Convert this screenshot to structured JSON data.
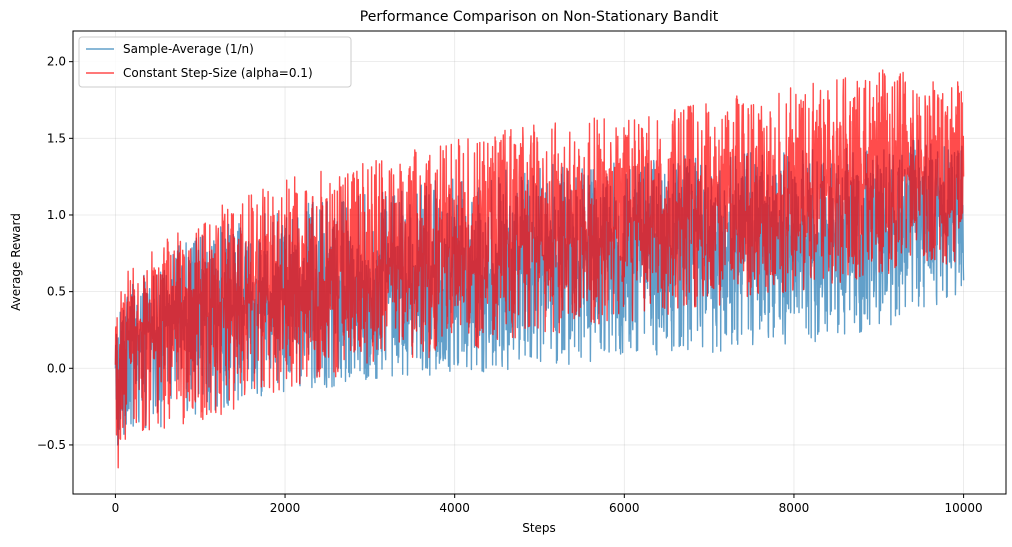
{
  "chart_data": {
    "type": "line",
    "title": "Performance Comparison on Non-Stationary Bandit",
    "xlabel": "Steps",
    "ylabel": "Average Reward",
    "xlim": [
      -500,
      10500
    ],
    "ylim": [
      -0.82,
      2.2
    ],
    "xticks": [
      0,
      2000,
      4000,
      6000,
      8000,
      10000
    ],
    "yticks": [
      -0.5,
      0.0,
      0.5,
      1.0,
      1.5,
      2.0
    ],
    "ytick_labels": [
      "−0.5",
      "0.0",
      "0.5",
      "1.0",
      "1.5",
      "2.0"
    ],
    "grid": true,
    "legend_position": "upper-left",
    "steps": 10000,
    "series": [
      {
        "name": "Sample-Average (1/n)",
        "color": "#1f77b4",
        "opacity": 0.7,
        "trend": {
          "x": [
            0,
            200,
            1000,
            2000,
            3000,
            4000,
            5000,
            6000,
            7000,
            8000,
            9000,
            10000
          ],
          "mean": [
            0.0,
            0.2,
            0.35,
            0.45,
            0.52,
            0.58,
            0.66,
            0.74,
            0.8,
            0.86,
            0.92,
            1.0
          ],
          "low": [
            -0.55,
            -0.45,
            -0.3,
            -0.15,
            -0.1,
            -0.05,
            0.0,
            0.05,
            0.1,
            0.15,
            0.2,
            0.5
          ],
          "high": [
            0.3,
            0.6,
            0.9,
            1.05,
            1.15,
            1.25,
            1.35,
            1.35,
            1.4,
            1.42,
            1.45,
            1.55
          ]
        }
      },
      {
        "name": "Constant Step-Size (alpha=0.1)",
        "color": "#ff0000",
        "opacity": 0.7,
        "trend": {
          "x": [
            0,
            200,
            1000,
            2000,
            3000,
            4000,
            5000,
            6000,
            7000,
            8000,
            9000,
            10000
          ],
          "mean": [
            0.0,
            0.25,
            0.4,
            0.52,
            0.62,
            0.75,
            0.85,
            0.95,
            1.05,
            1.15,
            1.25,
            1.3
          ],
          "low": [
            -0.7,
            -0.45,
            -0.35,
            -0.15,
            0.0,
            0.1,
            0.2,
            0.3,
            0.4,
            0.5,
            0.6,
            0.7
          ],
          "high": [
            0.45,
            0.7,
            1.0,
            1.25,
            1.35,
            1.5,
            1.6,
            1.65,
            1.75,
            1.85,
            1.95,
            1.9
          ]
        }
      }
    ]
  }
}
